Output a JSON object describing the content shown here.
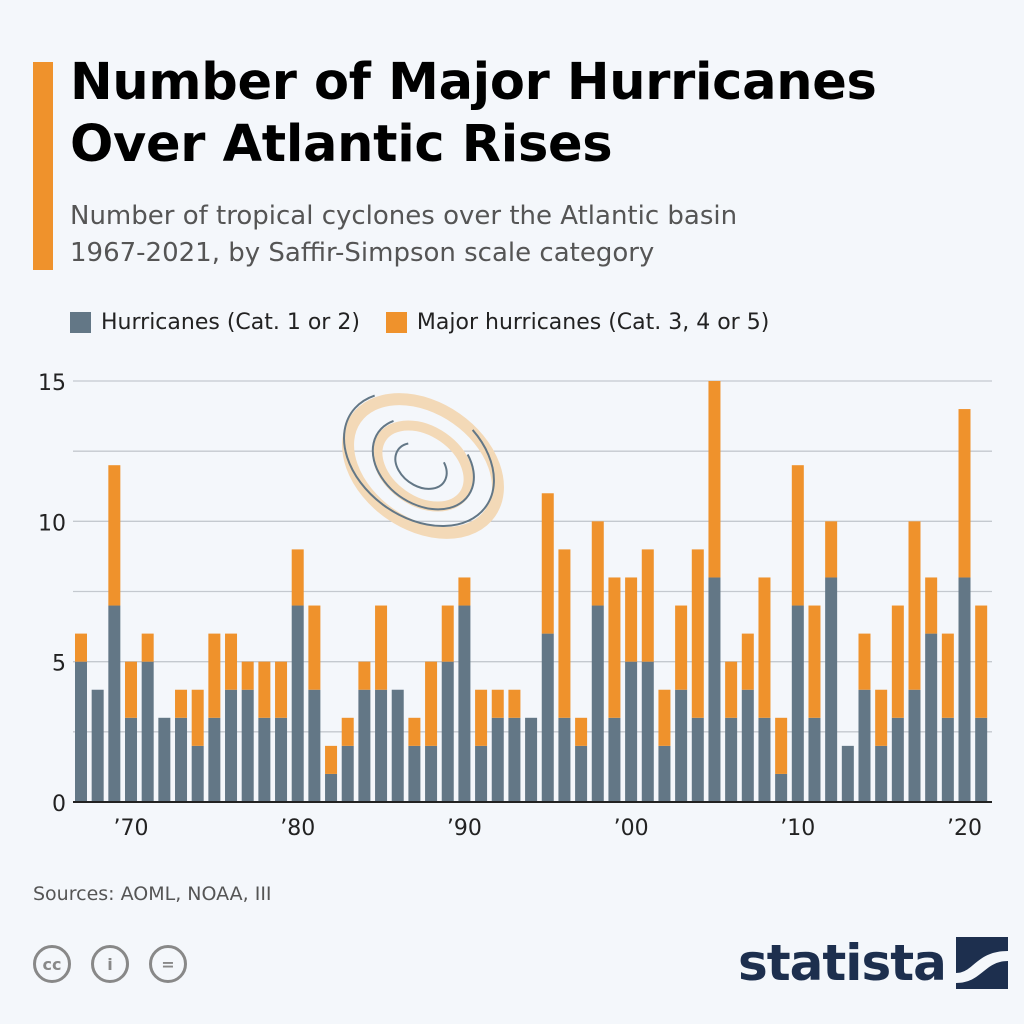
{
  "title": "Number of Major Hurricanes Over Atlantic Rises",
  "subtitle_line1": "Number of tropical cyclones over the Atlantic basin",
  "subtitle_line2": "1967-2021, by Saffir-Simpson scale category",
  "source": "Sources: AOML, NOAA, III",
  "brand": "statista",
  "colors": {
    "hurricanes": "#637786",
    "major": "#ef922c",
    "accent": "#ef922c",
    "brand": "#1d2f4e"
  },
  "chart_data": {
    "type": "bar",
    "stacked": true,
    "title": "",
    "xlabel": "",
    "ylabel": "",
    "ylim": [
      0,
      15
    ],
    "yticks": [
      0,
      5,
      10,
      15
    ],
    "grid": true,
    "legend_position": "top",
    "x_tick_labels": [
      {
        "year": 1970,
        "label": "’70"
      },
      {
        "year": 1980,
        "label": "’80"
      },
      {
        "year": 1990,
        "label": "’90"
      },
      {
        "year": 2000,
        "label": "’00"
      },
      {
        "year": 2010,
        "label": "’10"
      },
      {
        "year": 2020,
        "label": "’20"
      }
    ],
    "categories": [
      1967,
      1968,
      1969,
      1970,
      1971,
      1972,
      1973,
      1974,
      1975,
      1976,
      1977,
      1978,
      1979,
      1980,
      1981,
      1982,
      1983,
      1984,
      1985,
      1986,
      1987,
      1988,
      1989,
      1990,
      1991,
      1992,
      1993,
      1994,
      1995,
      1996,
      1997,
      1998,
      1999,
      2000,
      2001,
      2002,
      2003,
      2004,
      2005,
      2006,
      2007,
      2008,
      2009,
      2010,
      2011,
      2012,
      2013,
      2014,
      2015,
      2016,
      2017,
      2018,
      2019,
      2020,
      2021
    ],
    "series": [
      {
        "name": "Hurricanes (Cat. 1 or 2)",
        "values": [
          5,
          4,
          7,
          3,
          5,
          3,
          3,
          2,
          3,
          4,
          4,
          3,
          3,
          7,
          4,
          1,
          2,
          4,
          4,
          4,
          2,
          2,
          5,
          7,
          2,
          3,
          3,
          3,
          6,
          3,
          2,
          7,
          3,
          5,
          5,
          2,
          4,
          3,
          8,
          3,
          4,
          3,
          1,
          7,
          3,
          8,
          2,
          4,
          2,
          3,
          4,
          6,
          3,
          8,
          3
        ]
      },
      {
        "name": "Major hurricanes (Cat. 3, 4 or 5)",
        "values": [
          1,
          0,
          5,
          2,
          1,
          0,
          1,
          2,
          3,
          2,
          1,
          2,
          2,
          2,
          3,
          1,
          1,
          1,
          3,
          0,
          1,
          3,
          2,
          1,
          2,
          1,
          1,
          0,
          5,
          6,
          1,
          3,
          5,
          3,
          4,
          2,
          3,
          6,
          7,
          2,
          2,
          5,
          2,
          5,
          4,
          2,
          0,
          2,
          2,
          4,
          6,
          2,
          3,
          6,
          4
        ]
      }
    ]
  }
}
